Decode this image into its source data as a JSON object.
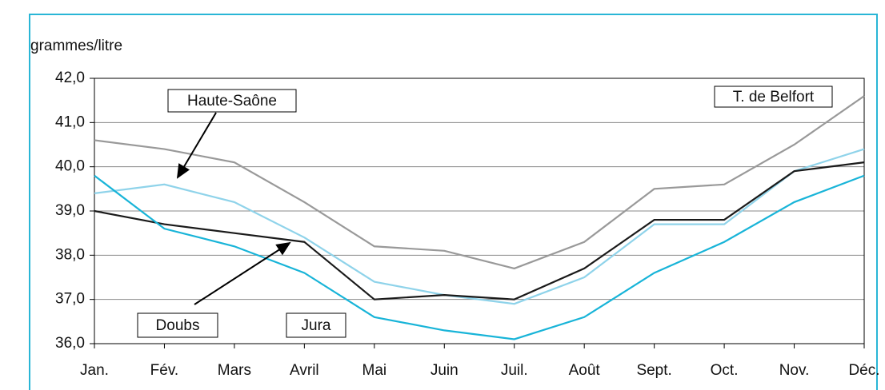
{
  "chart_data": {
    "type": "line",
    "y_axis_label": "grammes/litre",
    "categories": [
      "Jan.",
      "Fév.",
      "Mars",
      "Avril",
      "Mai",
      "Juin",
      "Juil.",
      "Août",
      "Sept.",
      "Oct.",
      "Nov.",
      "Déc."
    ],
    "series": [
      {
        "name": "T. de Belfort",
        "color": "#999999",
        "values": [
          40.6,
          40.4,
          40.1,
          39.2,
          38.2,
          38.1,
          37.7,
          38.3,
          39.5,
          39.6,
          40.5,
          41.6
        ]
      },
      {
        "name": "Haute-Saône",
        "color": "#8fd3ea",
        "values": [
          39.4,
          39.6,
          39.2,
          38.4,
          37.4,
          37.1,
          36.9,
          37.5,
          38.7,
          38.7,
          39.9,
          40.4
        ]
      },
      {
        "name": "Doubs",
        "color": "#1a1a1a",
        "values": [
          39.0,
          38.7,
          38.5,
          38.3,
          37.0,
          37.1,
          37.0,
          37.7,
          38.8,
          38.8,
          39.9,
          40.1
        ]
      },
      {
        "name": "Jura",
        "color": "#18b4d8",
        "values": [
          39.8,
          38.6,
          38.2,
          37.6,
          36.6,
          36.3,
          36.1,
          36.6,
          37.6,
          38.3,
          39.2,
          39.8
        ]
      }
    ],
    "ylim": [
      36,
      42
    ],
    "yticks": [
      {
        "value": 36,
        "label": "36,0"
      },
      {
        "value": 37,
        "label": "37,0"
      },
      {
        "value": 38,
        "label": "38,0"
      },
      {
        "value": 39,
        "label": "39,0"
      },
      {
        "value": 40,
        "label": "40,0"
      },
      {
        "value": 41,
        "label": "41,0"
      },
      {
        "value": 42,
        "label": "42,0"
      }
    ],
    "grid": true
  }
}
